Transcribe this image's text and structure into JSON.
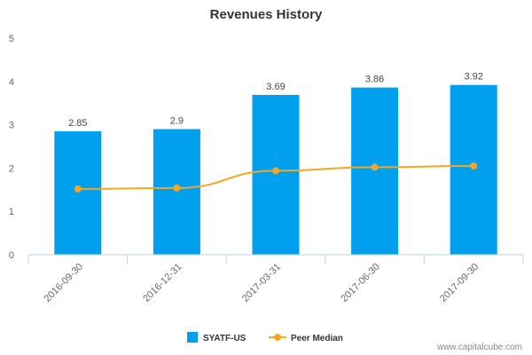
{
  "chart_data": {
    "type": "bar",
    "title": "Revenues History",
    "categories": [
      "2016-09-30",
      "2016-12-31",
      "2017-03-31",
      "2017-06-30",
      "2017-09-30"
    ],
    "ylim": [
      0,
      5
    ],
    "yticks": [
      0,
      1,
      2,
      3,
      4,
      5
    ],
    "grid": false,
    "legend_position": "bottom-center",
    "series": [
      {
        "name": "SYATF-US",
        "type": "bar",
        "color": "#00a0ee",
        "values": [
          2.85,
          2.9,
          3.69,
          3.86,
          3.92
        ],
        "labels": [
          "2.85",
          "2.9",
          "3.69",
          "3.86",
          "3.92"
        ]
      },
      {
        "name": "Peer Median",
        "type": "line",
        "color": "#f5a623",
        "values": [
          1.52,
          1.54,
          1.94,
          2.02,
          2.05
        ]
      }
    ]
  },
  "footer": {
    "source": "www.capitalcube.com"
  }
}
